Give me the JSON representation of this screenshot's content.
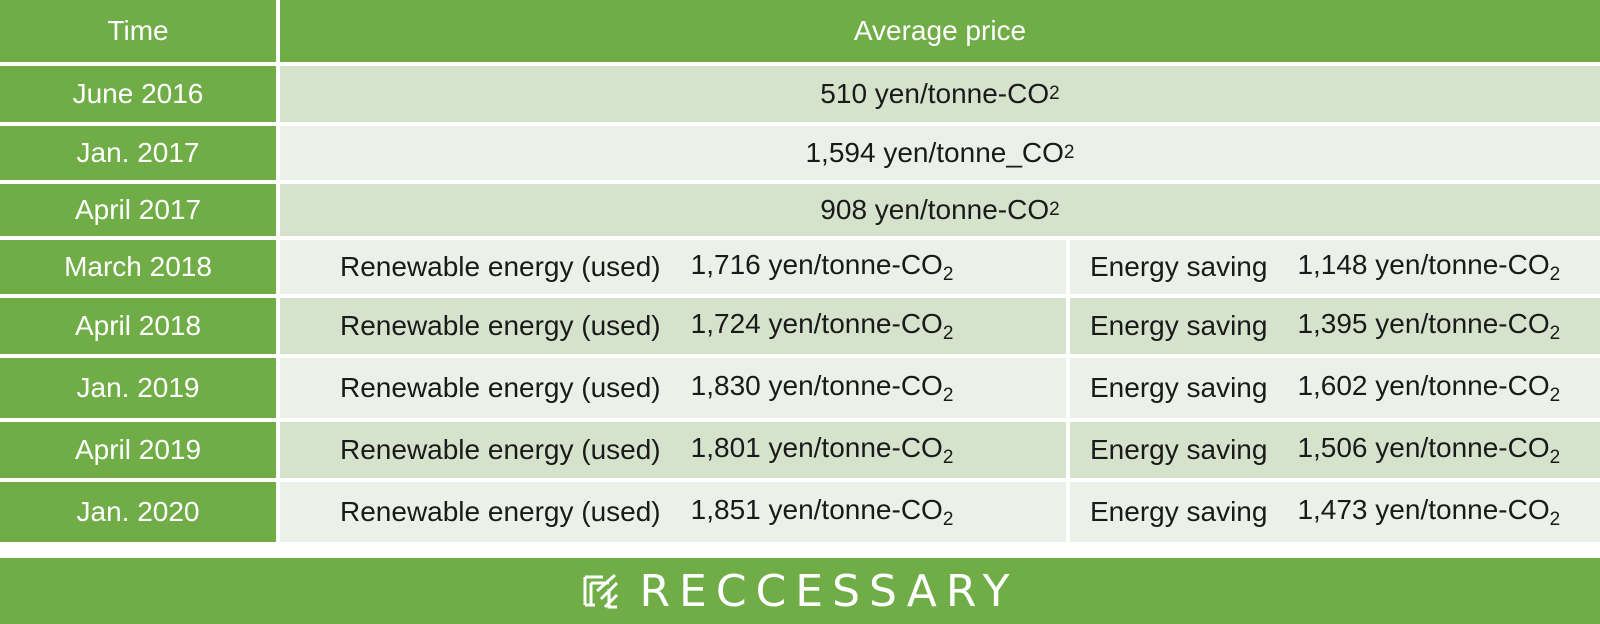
{
  "header": {
    "time_label": "Time",
    "price_label": "Average price"
  },
  "unit_main": "yen/tonne-CO",
  "unit_alt": "yen/tonne_CO",
  "unit_sub": "2",
  "rows_full": [
    {
      "time": "June 2016",
      "price": "510"
    },
    {
      "time": "Jan. 2017",
      "price": "1,594"
    },
    {
      "time": "April 2017",
      "price": "908"
    }
  ],
  "split_labels": {
    "renewable": "Renewable energy (used)",
    "saving": "Energy saving"
  },
  "rows_split": [
    {
      "time": "March 2018",
      "renewable": "1,716",
      "saving": "1,148"
    },
    {
      "time": "April 2018",
      "renewable": "1,724",
      "saving": "1,395"
    },
    {
      "time": "Jan. 2019",
      "renewable": "1,830",
      "saving": "1,602"
    },
    {
      "time": "April 2019",
      "renewable": "1,801",
      "saving": "1,506"
    },
    {
      "time": "Jan. 2020",
      "renewable": "1,851",
      "saving": "1,473"
    }
  ],
  "footer": {
    "brand": "RECCESSARY",
    "logo_icon": "reccessary-logo-icon"
  }
}
